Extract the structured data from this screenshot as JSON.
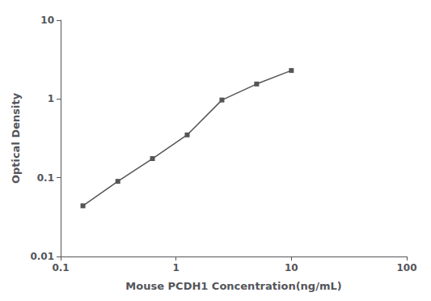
{
  "chart_data": {
    "type": "line",
    "x": [
      0.156,
      0.313,
      0.625,
      1.25,
      2.5,
      5.0,
      10.0
    ],
    "values": [
      0.044,
      0.09,
      0.175,
      0.35,
      0.97,
      1.55,
      2.3
    ],
    "xlabel": "Mouse PCDH1 Concentration(ng/mL)",
    "ylabel": "Optical Density",
    "xlim": [
      0.1,
      100
    ],
    "ylim": [
      0.01,
      10
    ],
    "xticks": [
      0.1,
      1,
      10,
      100
    ],
    "yticks": [
      0.01,
      0.1,
      1,
      10
    ],
    "log": true,
    "grid": false,
    "color": "#555555",
    "marker": "square"
  }
}
